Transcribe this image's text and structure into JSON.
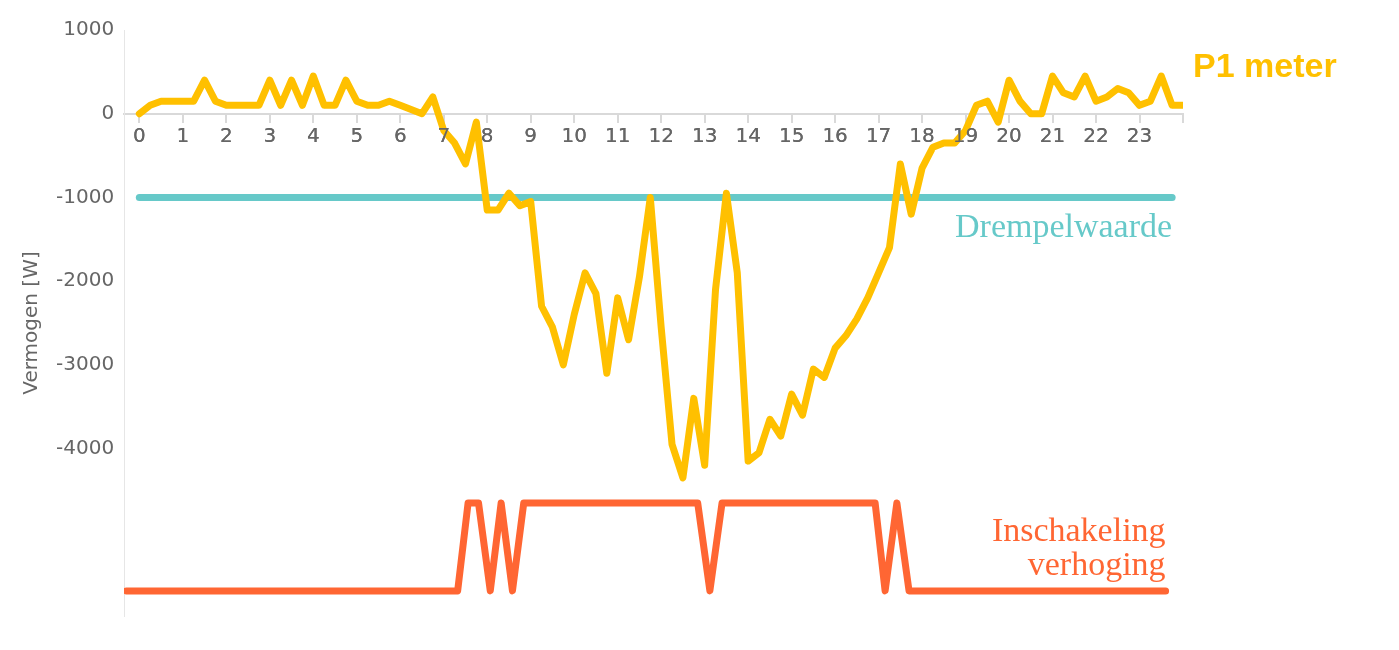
{
  "chart_data": {
    "type": "line",
    "ylabel": "Vermogen [W]",
    "xlim": [
      -0.35,
      24
    ],
    "xticks": [
      0,
      1,
      2,
      3,
      4,
      5,
      6,
      7,
      8,
      9,
      10,
      11,
      12,
      13,
      14,
      15,
      16,
      17,
      18,
      19,
      20,
      21,
      22,
      23,
      {
        "value": 24,
        "label": null
      }
    ],
    "ylim": [
      -6000,
      1000
    ],
    "yticks": [
      1000,
      0,
      -1000,
      -2000,
      -3000,
      -4000
    ],
    "grid": false,
    "legend": false,
    "marker": "none",
    "line_style": "solid",
    "series": [
      {
        "name": "P1 meter",
        "color": "#ffc000",
        "x": [
          0,
          0.25,
          0.5,
          0.75,
          1,
          1.25,
          1.5,
          1.75,
          2,
          2.25,
          2.5,
          2.75,
          3,
          3.25,
          3.5,
          3.75,
          4,
          4.25,
          4.5,
          4.75,
          5,
          5.25,
          5.5,
          5.75,
          6,
          6.25,
          6.5,
          6.75,
          7,
          7.25,
          7.5,
          7.75,
          8,
          8.25,
          8.5,
          8.75,
          9,
          9.25,
          9.5,
          9.75,
          10,
          10.25,
          10.5,
          10.75,
          11,
          11.25,
          11.5,
          11.75,
          12,
          12.25,
          12.5,
          12.75,
          13,
          13.25,
          13.5,
          13.75,
          14,
          14.25,
          14.5,
          14.75,
          15,
          15.25,
          15.5,
          15.75,
          16,
          16.25,
          16.5,
          16.75,
          17,
          17.25,
          17.5,
          17.75,
          18,
          18.25,
          18.5,
          18.75,
          19,
          19.25,
          19.5,
          19.75,
          20,
          20.25,
          20.5,
          20.75,
          21,
          21.25,
          21.5,
          21.75,
          22,
          22.25,
          22.5,
          22.75,
          23,
          23.25,
          23.5,
          23.75,
          24
        ],
        "values": [
          0,
          100,
          150,
          150,
          150,
          150,
          400,
          150,
          100,
          100,
          100,
          100,
          400,
          100,
          400,
          100,
          450,
          100,
          100,
          400,
          150,
          100,
          100,
          150,
          100,
          50,
          0,
          200,
          -200,
          -350,
          -600,
          -100,
          -1150,
          -1150,
          -950,
          -1100,
          -1050,
          -2300,
          -2550,
          -3000,
          -2400,
          -1900,
          -2150,
          -3100,
          -2200,
          -2700,
          -1950,
          -1000,
          -2550,
          -3950,
          -4350,
          -3400,
          -4200,
          -2100,
          -950,
          -1900,
          -4150,
          -4050,
          -3650,
          -3850,
          -3350,
          -3600,
          -3050,
          -3150,
          -2800,
          -2650,
          -2450,
          -2200,
          -1900,
          -1600,
          -600,
          -1200,
          -650,
          -400,
          -350,
          -350,
          -200,
          100,
          150,
          -100,
          400,
          150,
          0,
          0,
          450,
          250,
          200,
          450,
          150,
          200,
          300,
          250,
          100,
          150,
          450,
          100,
          100
        ]
      },
      {
        "name": "Drempelwaarde",
        "color": "#66c9c9",
        "x": [
          0,
          23.75
        ],
        "values": [
          -1000,
          -1000
        ]
      },
      {
        "name": "Inschakeling verhoging",
        "color": "#ff6633",
        "x": [
          -0.3,
          7.32,
          7.56,
          7.8,
          8.07,
          8.32,
          8.58,
          8.84,
          12.84,
          13.12,
          13.4,
          16.92,
          17.15,
          17.42,
          17.7,
          23.6
        ],
        "values": [
          -5700,
          -5700,
          -4650,
          -4650,
          -5700,
          -4650,
          -5700,
          -4650,
          -4650,
          -5700,
          -4650,
          -4650,
          -5700,
          -4650,
          -5700,
          -5700
        ]
      }
    ]
  }
}
